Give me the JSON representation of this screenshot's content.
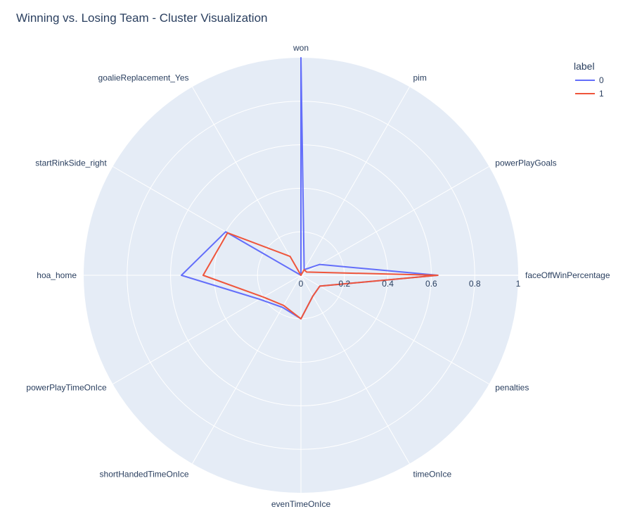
{
  "chart_data": {
    "type": "radar",
    "title": "Winning vs. Losing Team - Cluster Visualization",
    "categories": [
      "won",
      "pim",
      "powerPlayGoals",
      "faceOffWinPercentage",
      "penalties",
      "timeOnIce",
      "evenTimeOnIce",
      "shortHandedTimeOnIce",
      "powerPlayTimeOnIce",
      "hoa_home",
      "startRinkSide_right",
      "goalieReplacement_Yes"
    ],
    "radial_range": [
      0,
      1
    ],
    "radial_ticks": [
      "0",
      "0.2",
      "0.4",
      "0.6",
      "0.8",
      "1"
    ],
    "legend_title": "label",
    "series": [
      {
        "name": "0",
        "color": "#636efa",
        "values": [
          1.0,
          0.03,
          0.1,
          0.63,
          0.1,
          0.11,
          0.2,
          0.17,
          0.22,
          0.55,
          0.4,
          0.0
        ]
      },
      {
        "name": "1",
        "color": "#ef553b",
        "values": [
          0.0,
          0.03,
          0.03,
          0.63,
          0.1,
          0.11,
          0.2,
          0.16,
          0.2,
          0.45,
          0.39,
          0.1
        ]
      }
    ]
  }
}
